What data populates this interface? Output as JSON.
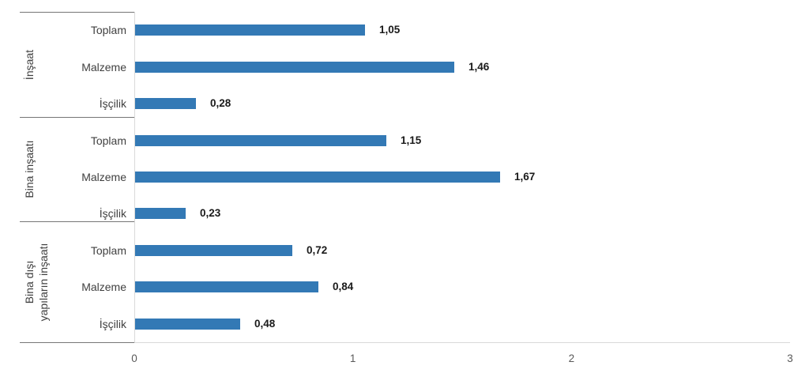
{
  "chart_data": {
    "type": "bar",
    "orientation": "horizontal",
    "title": "",
    "xlabel": "",
    "ylabel": "",
    "xlim": [
      0,
      3
    ],
    "x_ticks": [
      "0",
      "1",
      "2",
      "3"
    ],
    "grid": false,
    "legend": false,
    "bar_color": "#3379b5",
    "value_label_format": "comma-decimal",
    "groups": [
      {
        "label": "İnşaat",
        "label_lines": [
          "İnşaat"
        ],
        "rows": [
          {
            "category": "Toplam",
            "value": 1.05,
            "value_label": "1,05"
          },
          {
            "category": "Malzeme",
            "value": 1.46,
            "value_label": "1,46"
          },
          {
            "category": "İşçilik",
            "value": 0.28,
            "value_label": "0,28"
          }
        ]
      },
      {
        "label": "Bina inşaatı",
        "label_lines": [
          "Bina inşaatı"
        ],
        "rows": [
          {
            "category": "Toplam",
            "value": 1.15,
            "value_label": "1,15"
          },
          {
            "category": "Malzeme",
            "value": 1.67,
            "value_label": "1,67"
          },
          {
            "category": "İşçilik",
            "value": 0.23,
            "value_label": "0,23"
          }
        ]
      },
      {
        "label": "Bina dışı yapıların inşaatı",
        "label_lines": [
          "Bina dışı",
          "yapıların inşaatı"
        ],
        "rows": [
          {
            "category": "Toplam",
            "value": 0.72,
            "value_label": "0,72"
          },
          {
            "category": "Malzeme",
            "value": 0.84,
            "value_label": "0,84"
          },
          {
            "category": "İşçilik",
            "value": 0.48,
            "value_label": "0,48"
          }
        ]
      }
    ]
  }
}
